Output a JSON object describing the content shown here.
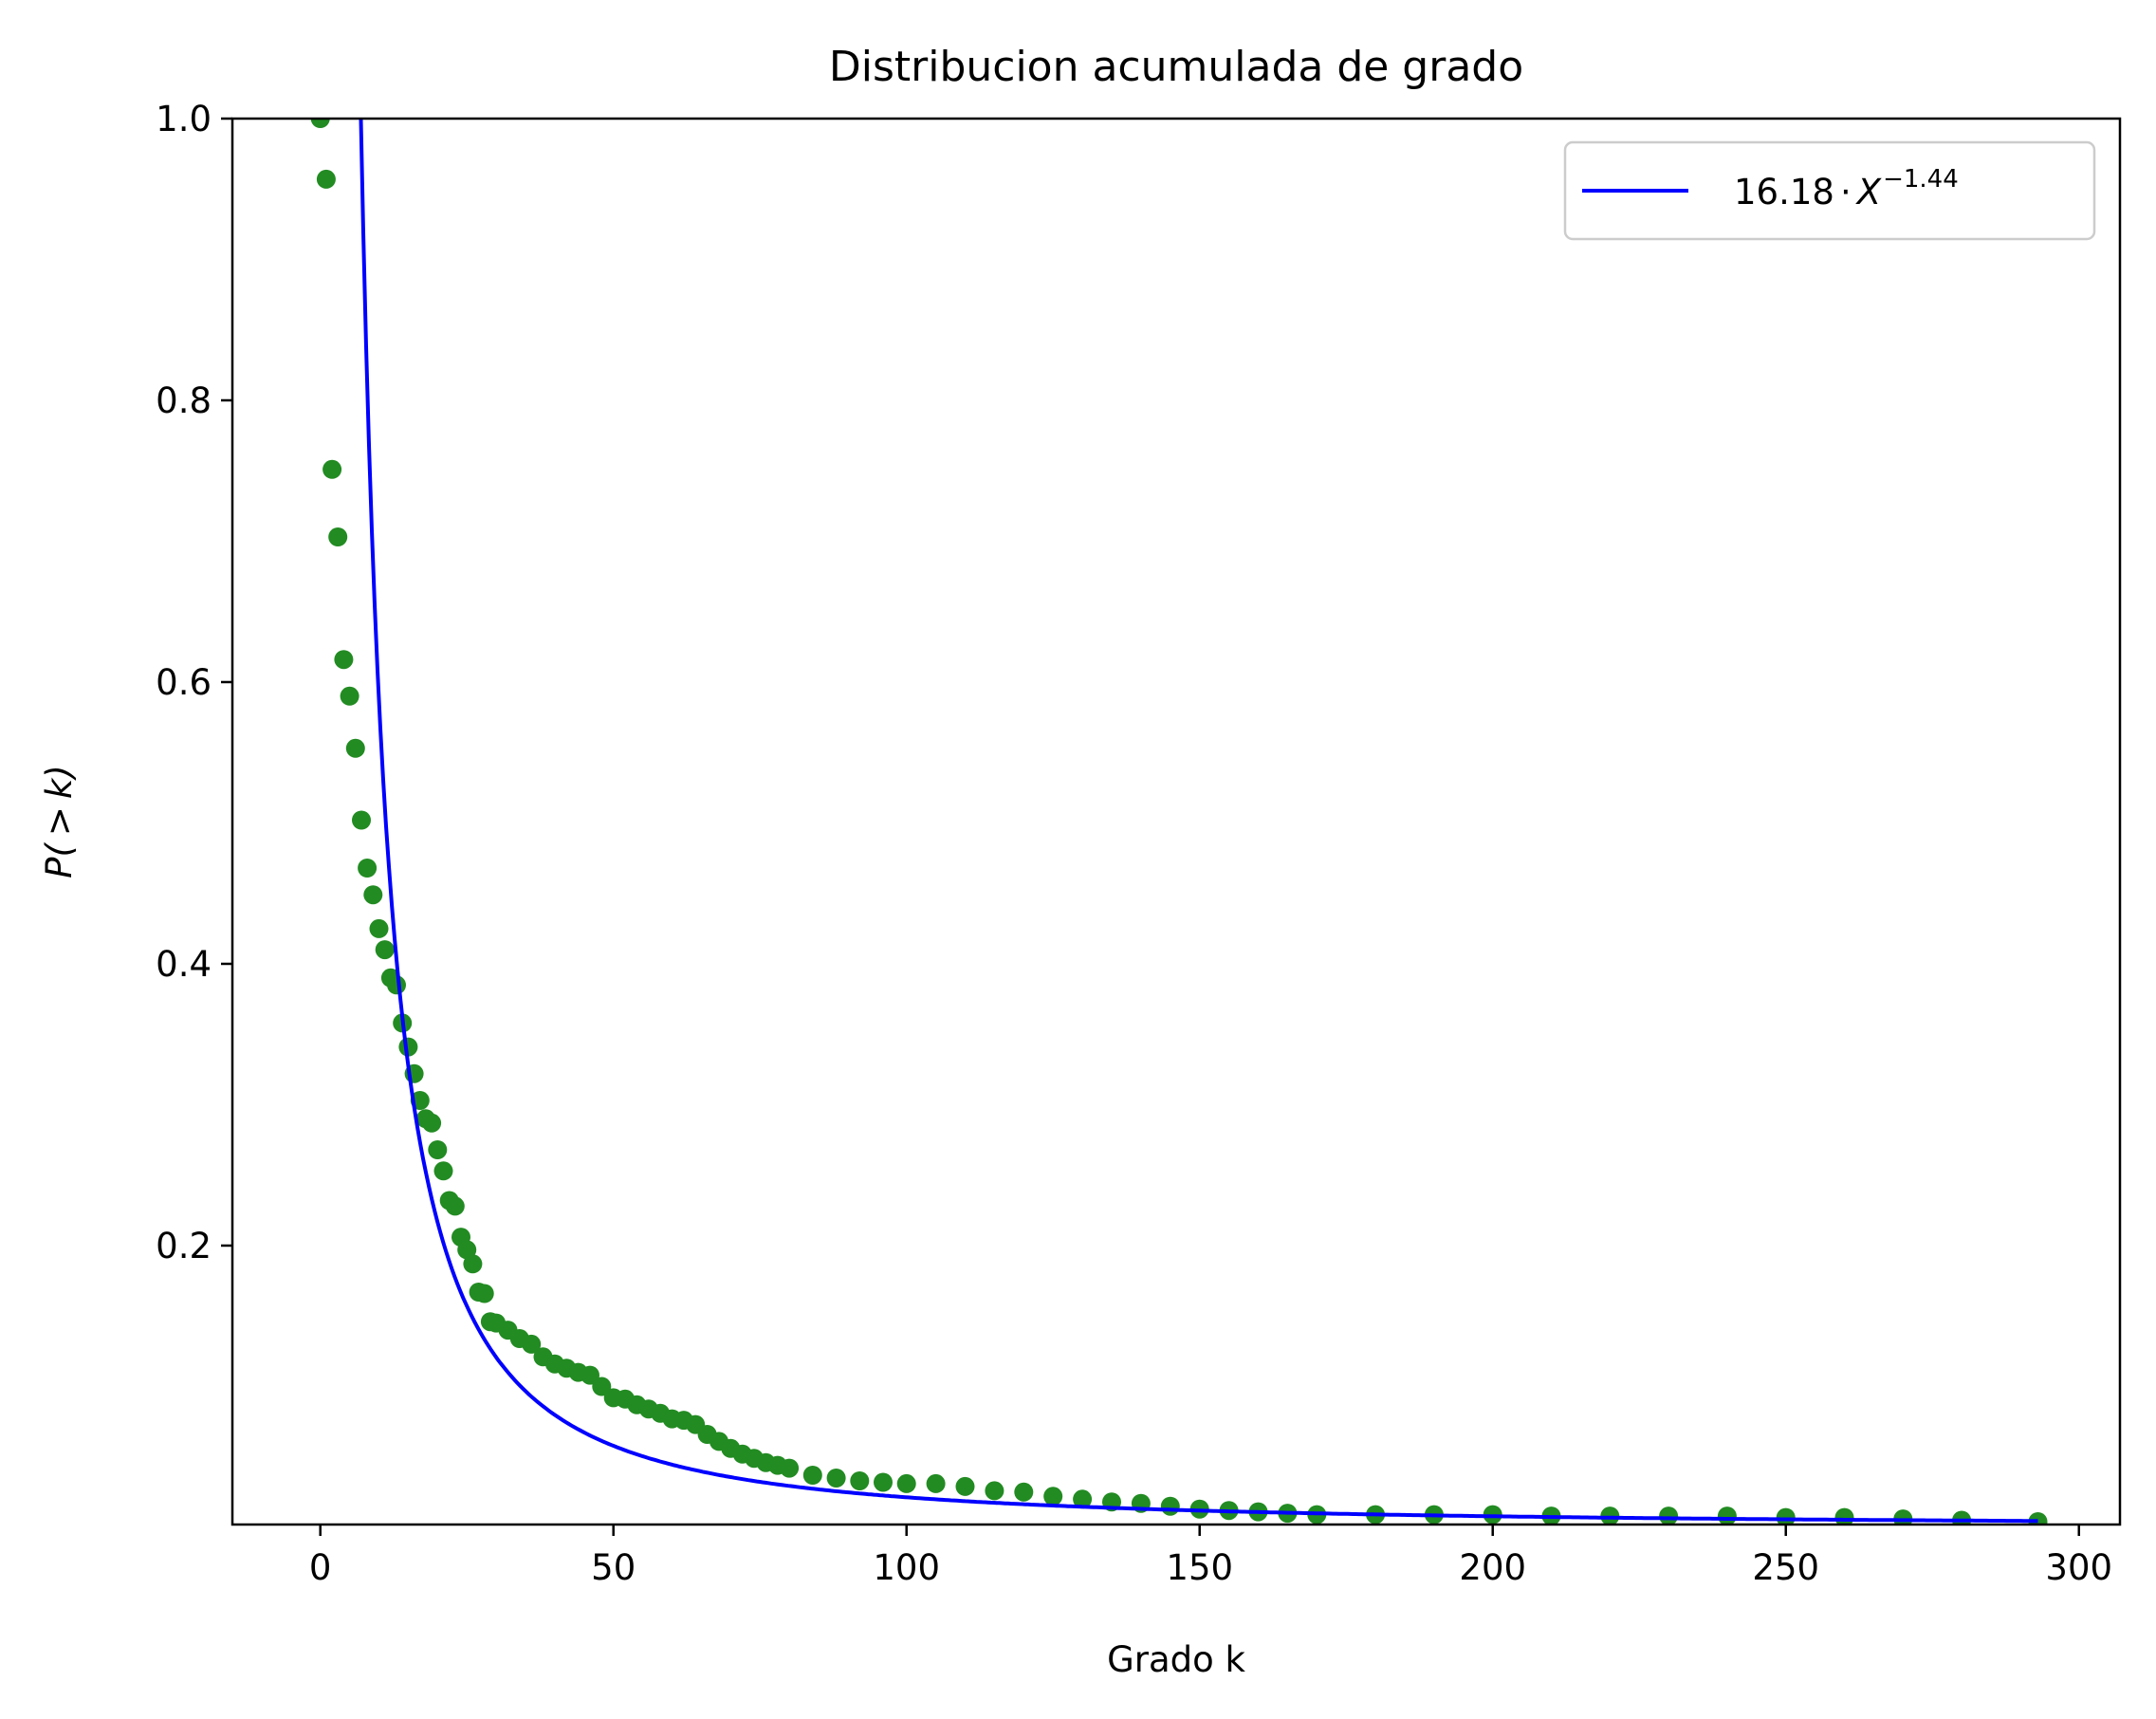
{
  "chart_data": {
    "type": "scatter",
    "title": "Distribucion acumulada de grado",
    "xlabel": "Grado k",
    "ylabel_main": "P(",
    "ylabel_op": ">",
    "ylabel_var": "k",
    "ylabel_close": ")",
    "xlim": [
      -15,
      307
    ],
    "ylim": [
      0.002,
      1.0
    ],
    "xticks": [
      0,
      50,
      100,
      150,
      200,
      250,
      300
    ],
    "xtick_labels": [
      "0",
      "50",
      "100",
      "150",
      "200",
      "250",
      "300"
    ],
    "yticks": [
      0.2,
      0.4,
      0.6,
      0.8,
      1.0
    ],
    "ytick_labels": [
      "0.2",
      "0.4",
      "0.6",
      "0.8",
      "1.0"
    ],
    "grid": false,
    "legend_position": "top-right",
    "colors": {
      "points": "#228b22",
      "fit": "#0000ff",
      "axes": "#000000"
    },
    "fit": {
      "coefficient": 16.18,
      "exponent": -1.44,
      "x_range": [
        1,
        293
      ],
      "legend_label": {
        "coef": "16.18",
        "dot": "·",
        "var": "X",
        "sup": "−1.44"
      }
    },
    "series": [
      {
        "x": [
          0,
          1,
          2,
          3,
          4,
          5,
          6,
          7,
          8,
          9,
          10,
          11,
          12,
          13,
          14,
          15,
          16,
          17,
          18,
          19,
          20,
          21,
          22,
          23,
          24,
          25,
          26,
          27,
          28,
          29,
          30,
          32,
          34,
          36,
          38,
          40,
          42,
          44,
          46,
          48,
          50,
          52,
          54,
          56,
          58,
          60,
          62,
          64,
          66,
          68,
          70,
          72,
          74,
          76,
          78,
          80,
          84,
          88,
          92,
          96,
          100,
          105,
          110,
          115,
          120,
          125,
          130,
          135,
          140,
          145,
          150,
          155,
          160,
          165,
          170,
          180,
          190,
          200,
          210,
          220,
          230,
          240,
          250,
          260,
          270,
          280,
          293
        ],
        "y": [
          1.0,
          0.957,
          0.751,
          0.703,
          0.616,
          0.59,
          0.553,
          0.502,
          0.468,
          0.449,
          0.425,
          0.41,
          0.39,
          0.385,
          0.358,
          0.341,
          0.322,
          0.303,
          0.29,
          0.287,
          0.268,
          0.253,
          0.232,
          0.228,
          0.206,
          0.197,
          0.187,
          0.167,
          0.166,
          0.146,
          0.145,
          0.14,
          0.134,
          0.13,
          0.121,
          0.116,
          0.113,
          0.11,
          0.108,
          0.1,
          0.092,
          0.091,
          0.087,
          0.084,
          0.081,
          0.077,
          0.076,
          0.073,
          0.066,
          0.061,
          0.056,
          0.052,
          0.049,
          0.046,
          0.044,
          0.042,
          0.037,
          0.035,
          0.033,
          0.032,
          0.031,
          0.031,
          0.029,
          0.026,
          0.025,
          0.022,
          0.02,
          0.018,
          0.017,
          0.015,
          0.013,
          0.012,
          0.011,
          0.01,
          0.009,
          0.009,
          0.009,
          0.009,
          0.008,
          0.008,
          0.008,
          0.008,
          0.007,
          0.007,
          0.006,
          0.005,
          0.004
        ]
      }
    ]
  }
}
